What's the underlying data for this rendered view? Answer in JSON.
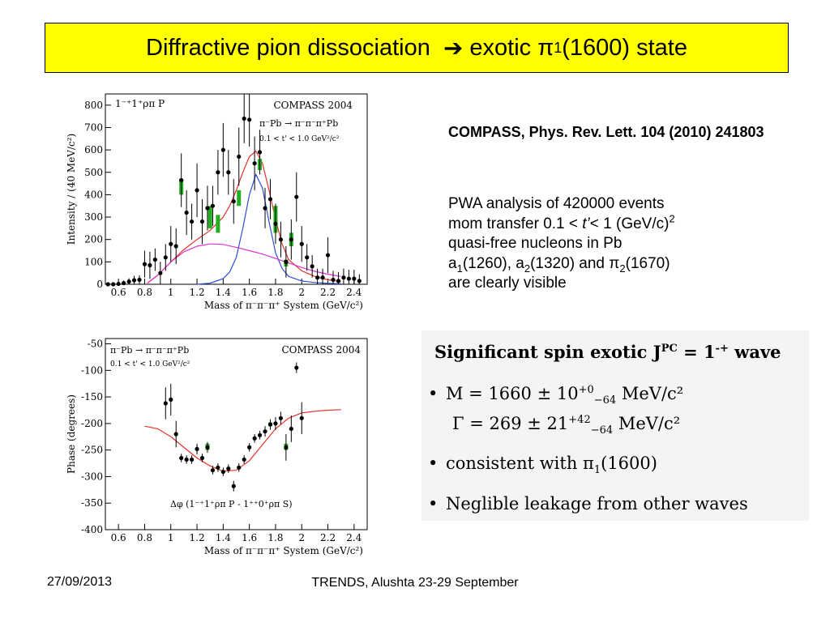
{
  "title": {
    "prefix": "Diffractive pion dissociation",
    "arrow": "➔",
    "mid": "exotic π",
    "sub": "1",
    "suffix": "(1600) state"
  },
  "reference": "COMPASS, Phys. Rev. Lett. 104 (2010) 241803",
  "info": {
    "line1": "PWA  analysis of 420000 events",
    "line2_a": "mom transfer  0.1 < ",
    "line2_t": "t’",
    "line2_b": "< 1 (GeV/c)",
    "line2_sup": "2",
    "line3": "quasi-free nucleons in Pb",
    "line4_a": "a",
    "line4_a_sub": "1",
    "line4_b": "(1260), a",
    "line4_b_sub": "2",
    "line4_c": "(1320) and π",
    "line4_c_sub": "2",
    "line4_d": "(1670)",
    "line5": "are clearly visible"
  },
  "panel": {
    "heading": "Significant  spin exotic  J",
    "heading_sup": "PC",
    "heading_tail": " = 1",
    "heading_tail_sup": "-+",
    "heading_end": " wave",
    "b1": "M = 1660 ± 10",
    "b1_sup": "+0",
    "b1_sub": "−64",
    "b1_unit": " MeV/c²",
    "b2": "Γ = 269 ± 21",
    "b2_sup": "+42",
    "b2_sub": "−64",
    "b2_unit": " MeV/c²",
    "b3_a": "consistent with π",
    "b3_sub": "1",
    "b3_b": "(1600)",
    "b4": "Neglible leakage from other waves",
    "bullet_char": "•"
  },
  "footer": {
    "date": "27/09/2013",
    "event": "TRENDS, Alushta 23-29 September"
  },
  "colors": {
    "title_bg": "#ffff00",
    "total_fit": "#e8322b",
    "bw": "#2f4fd6",
    "background": "#e033d6",
    "syst": "#22b022"
  },
  "chart_data": [
    {
      "type": "scatter",
      "title": "COMPASS 2004",
      "wave_label": "1⁻⁺1⁺ρπ P",
      "reaction": "π⁻Pb → π⁻π⁻π⁺Pb",
      "tcut": "0.1 < t' < 1.0 GeV²/c²",
      "xlabel": "Mass of π⁻π⁻π⁺ System (GeV/c²)",
      "ylabel": "Intensity / (40 MeV/c²)",
      "xlim": [
        0.5,
        2.5
      ],
      "ylim": [
        0,
        850
      ],
      "xticks": [
        0.6,
        0.8,
        1,
        1.2,
        1.4,
        1.6,
        1.8,
        2,
        2.2,
        2.4
      ],
      "xtick_labels": [
        "0.6",
        "0.8",
        "1",
        "1.2",
        "1.4",
        "1.6",
        "1.8",
        "2",
        "2.2",
        "2.4"
      ],
      "yticks": [
        0,
        100,
        200,
        300,
        400,
        500,
        600,
        700,
        800
      ],
      "ytick_labels": [
        "0",
        "100",
        "200",
        "300",
        "400",
        "500",
        "600",
        "700",
        "800"
      ],
      "points": [
        {
          "x": 0.52,
          "y": 0,
          "e": 8
        },
        {
          "x": 0.56,
          "y": 0,
          "e": 8
        },
        {
          "x": 0.6,
          "y": 2,
          "e": 10
        },
        {
          "x": 0.64,
          "y": 5,
          "e": 12
        },
        {
          "x": 0.68,
          "y": 12,
          "e": 15
        },
        {
          "x": 0.72,
          "y": 18,
          "e": 20
        },
        {
          "x": 0.76,
          "y": 20,
          "e": 20
        },
        {
          "x": 0.8,
          "y": 90,
          "e": 60
        },
        {
          "x": 0.84,
          "y": 85,
          "e": 60
        },
        {
          "x": 0.88,
          "y": 110,
          "e": 50
        },
        {
          "x": 0.92,
          "y": 50,
          "e": 50
        },
        {
          "x": 0.96,
          "y": 120,
          "e": 60
        },
        {
          "x": 1.0,
          "y": 180,
          "e": 80
        },
        {
          "x": 1.04,
          "y": 170,
          "e": 80
        },
        {
          "x": 1.08,
          "y": 465,
          "e": 120
        },
        {
          "x": 1.12,
          "y": 320,
          "e": 100
        },
        {
          "x": 1.16,
          "y": 280,
          "e": 80
        },
        {
          "x": 1.2,
          "y": 420,
          "e": 120
        },
        {
          "x": 1.24,
          "y": 280,
          "e": 100
        },
        {
          "x": 1.28,
          "y": 340,
          "e": 100
        },
        {
          "x": 1.32,
          "y": 350,
          "e": 90
        },
        {
          "x": 1.36,
          "y": 500,
          "e": 100
        },
        {
          "x": 1.4,
          "y": 600,
          "e": 120
        },
        {
          "x": 1.44,
          "y": 500,
          "e": 100
        },
        {
          "x": 1.48,
          "y": 370,
          "e": 100
        },
        {
          "x": 1.52,
          "y": 570,
          "e": 130
        },
        {
          "x": 1.56,
          "y": 740,
          "e": 110
        },
        {
          "x": 1.6,
          "y": 735,
          "e": 120
        },
        {
          "x": 1.64,
          "y": 540,
          "e": 120
        },
        {
          "x": 1.68,
          "y": 590,
          "e": 100
        },
        {
          "x": 1.72,
          "y": 340,
          "e": 90
        },
        {
          "x": 1.76,
          "y": 380,
          "e": 90
        },
        {
          "x": 1.8,
          "y": 270,
          "e": 90
        },
        {
          "x": 1.84,
          "y": 200,
          "e": 80
        },
        {
          "x": 1.88,
          "y": 100,
          "e": 70
        },
        {
          "x": 1.92,
          "y": 200,
          "e": 90
        },
        {
          "x": 1.96,
          "y": 390,
          "e": 110
        },
        {
          "x": 2.0,
          "y": 180,
          "e": 80
        },
        {
          "x": 2.04,
          "y": 120,
          "e": 60
        },
        {
          "x": 2.08,
          "y": 80,
          "e": 50
        },
        {
          "x": 2.12,
          "y": 30,
          "e": 40
        },
        {
          "x": 2.16,
          "y": 30,
          "e": 40
        },
        {
          "x": 2.2,
          "y": 130,
          "e": 80
        },
        {
          "x": 2.24,
          "y": 20,
          "e": 40
        },
        {
          "x": 2.28,
          "y": 15,
          "e": 40
        },
        {
          "x": 2.32,
          "y": 30,
          "e": 40
        },
        {
          "x": 2.36,
          "y": 25,
          "e": 40
        },
        {
          "x": 2.4,
          "y": 25,
          "e": 40
        },
        {
          "x": 2.44,
          "y": 15,
          "e": 30
        }
      ],
      "syst_bands": [
        {
          "x": 1.08,
          "lo": 400,
          "hi": 470
        },
        {
          "x": 1.3,
          "lo": 250,
          "hi": 350
        },
        {
          "x": 1.36,
          "lo": 230,
          "hi": 310
        },
        {
          "x": 1.52,
          "lo": 350,
          "hi": 420
        },
        {
          "x": 1.68,
          "lo": 510,
          "hi": 560
        },
        {
          "x": 1.8,
          "lo": 230,
          "hi": 350
        },
        {
          "x": 1.88,
          "lo": 80,
          "hi": 110
        },
        {
          "x": 1.92,
          "lo": 170,
          "hi": 230
        }
      ],
      "curves": [
        {
          "role": "total",
          "x": [
            0.82,
            0.9,
            1.0,
            1.1,
            1.2,
            1.3,
            1.4,
            1.45,
            1.5,
            1.55,
            1.6,
            1.65,
            1.7,
            1.75,
            1.8,
            1.85,
            1.9,
            2.0,
            2.1,
            2.2,
            2.3
          ],
          "y": [
            5,
            40,
            100,
            155,
            200,
            240,
            300,
            350,
            420,
            500,
            570,
            595,
            540,
            420,
            290,
            180,
            110,
            60,
            35,
            20,
            12
          ]
        },
        {
          "role": "bw",
          "x": [
            1.2,
            1.3,
            1.4,
            1.45,
            1.5,
            1.55,
            1.6,
            1.65,
            1.7,
            1.75,
            1.8,
            1.85,
            1.9,
            2.0,
            2.1,
            2.2,
            2.3
          ],
          "y": [
            0,
            5,
            25,
            55,
            120,
            250,
            400,
            490,
            430,
            280,
            140,
            70,
            35,
            15,
            8,
            4,
            2
          ]
        },
        {
          "role": "bkg",
          "x": [
            0.82,
            0.9,
            1.0,
            1.1,
            1.2,
            1.3,
            1.4,
            1.5,
            1.6,
            1.7,
            1.8,
            1.9,
            2.0,
            2.1,
            2.2,
            2.3
          ],
          "y": [
            5,
            40,
            100,
            145,
            170,
            180,
            178,
            165,
            150,
            135,
            115,
            95,
            75,
            58,
            45,
            35
          ]
        }
      ]
    },
    {
      "type": "scatter",
      "title": "COMPASS 2004",
      "reaction": "π⁻Pb → π⁻π⁻π⁺Pb",
      "tcut": "0.1 < t' < 1.0 GeV²/c²",
      "wave_label": "Δφ (1⁻⁺1⁺ρπ P - 1⁺⁺0⁺ρπ S)",
      "xlabel": "Mass of π⁻π⁻π⁺ System (GeV/c²)",
      "ylabel": "Phase (degrees)",
      "xlim": [
        0.5,
        2.5
      ],
      "ylim": [
        -400,
        -40
      ],
      "xticks": [
        0.6,
        0.8,
        1,
        1.2,
        1.4,
        1.6,
        1.8,
        2,
        2.2,
        2.4
      ],
      "xtick_labels": [
        "0.6",
        "0.8",
        "1",
        "1.2",
        "1.4",
        "1.6",
        "1.8",
        "2",
        "2.2",
        "2.4"
      ],
      "yticks": [
        -50,
        -100,
        -150,
        -200,
        -250,
        -300,
        -350,
        -400
      ],
      "ytick_labels": [
        "-50",
        "-100",
        "-150",
        "-200",
        "-250",
        "-300",
        "-350",
        "-400"
      ],
      "points": [
        {
          "x": 0.96,
          "y": -162,
          "e": 30
        },
        {
          "x": 1.0,
          "y": -155,
          "e": 30
        },
        {
          "x": 1.04,
          "y": -220,
          "e": 25
        },
        {
          "x": 1.08,
          "y": -265,
          "e": 8
        },
        {
          "x": 1.12,
          "y": -268,
          "e": 8
        },
        {
          "x": 1.16,
          "y": -268,
          "e": 8
        },
        {
          "x": 1.2,
          "y": -248,
          "e": 10
        },
        {
          "x": 1.24,
          "y": -265,
          "e": 8
        },
        {
          "x": 1.28,
          "y": -245,
          "e": 10
        },
        {
          "x": 1.32,
          "y": -288,
          "e": 8
        },
        {
          "x": 1.36,
          "y": -283,
          "e": 8
        },
        {
          "x": 1.4,
          "y": -291,
          "e": 8
        },
        {
          "x": 1.44,
          "y": -285,
          "e": 8
        },
        {
          "x": 1.48,
          "y": -318,
          "e": 10
        },
        {
          "x": 1.52,
          "y": -283,
          "e": 8
        },
        {
          "x": 1.56,
          "y": -268,
          "e": 8
        },
        {
          "x": 1.6,
          "y": -245,
          "e": 8
        },
        {
          "x": 1.64,
          "y": -228,
          "e": 8
        },
        {
          "x": 1.68,
          "y": -222,
          "e": 8
        },
        {
          "x": 1.72,
          "y": -215,
          "e": 10
        },
        {
          "x": 1.76,
          "y": -202,
          "e": 10
        },
        {
          "x": 1.8,
          "y": -200,
          "e": 12
        },
        {
          "x": 1.84,
          "y": -190,
          "e": 12
        },
        {
          "x": 1.88,
          "y": -245,
          "e": 25
        },
        {
          "x": 1.92,
          "y": -210,
          "e": 25
        },
        {
          "x": 1.96,
          "y": -95,
          "e": 10
        },
        {
          "x": 2.0,
          "y": -190,
          "e": 30
        }
      ],
      "syst_bands": [
        {
          "x": 1.28,
          "lo": -250,
          "hi": -238
        },
        {
          "x": 1.76,
          "lo": -205,
          "hi": -198
        },
        {
          "x": 1.88,
          "lo": -250,
          "hi": -238
        }
      ],
      "curves": [
        {
          "role": "fit",
          "x": [
            0.8,
            0.9,
            1.0,
            1.1,
            1.2,
            1.3,
            1.4,
            1.5,
            1.6,
            1.7,
            1.8,
            1.9,
            2.0,
            2.1,
            2.2,
            2.3
          ],
          "y": [
            -205,
            -210,
            -225,
            -245,
            -265,
            -280,
            -290,
            -288,
            -270,
            -240,
            -210,
            -190,
            -180,
            -177,
            -175,
            -174
          ]
        }
      ]
    }
  ]
}
